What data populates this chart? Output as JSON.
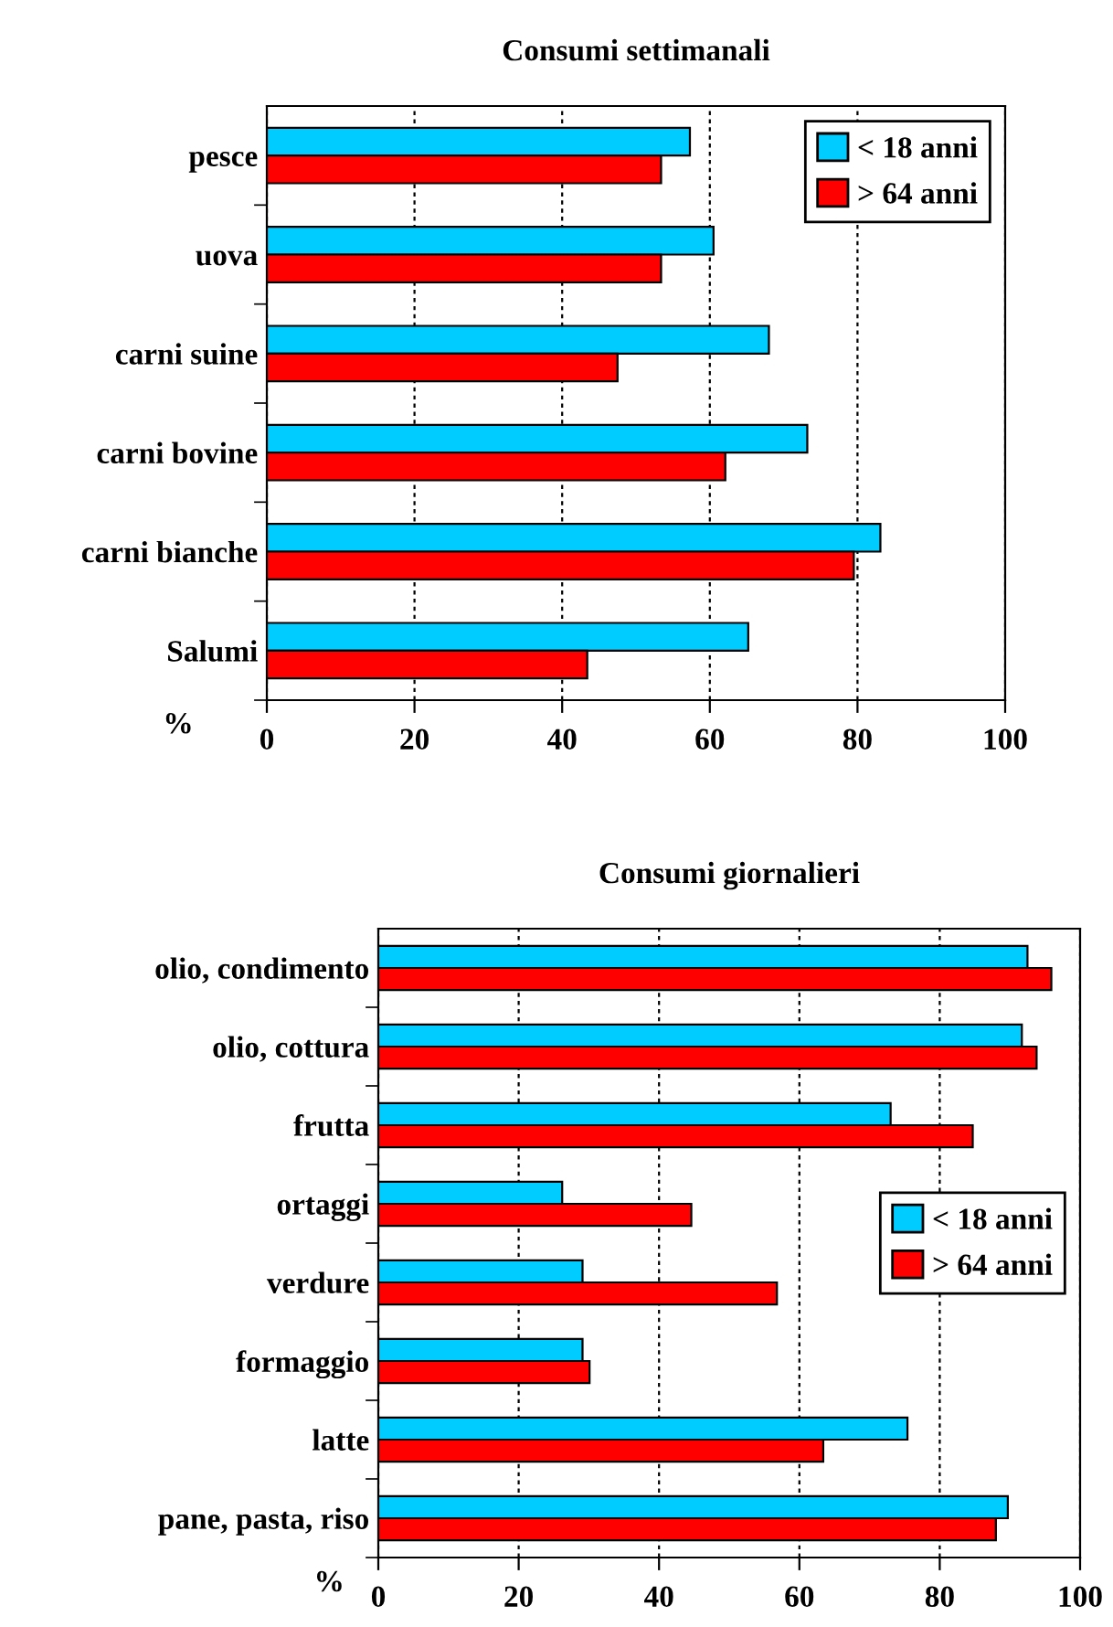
{
  "chart_data": [
    {
      "type": "bar",
      "orientation": "horizontal",
      "title": "Consumi settimanali",
      "xlabel": "%",
      "categories": [
        "pesce",
        "uova",
        "carni suine",
        "carni bovine",
        "carni bianche",
        "Salumi"
      ],
      "series": [
        {
          "name": "< 18 anni",
          "color": "#00ccff",
          "values": [
            57.3,
            60.5,
            68.0,
            73.2,
            83.1,
            65.2
          ]
        },
        {
          "name": "> 64 anni",
          "color": "#ff0000",
          "values": [
            53.4,
            53.4,
            47.5,
            62.1,
            79.5,
            43.4
          ]
        }
      ],
      "xlim": [
        0,
        100
      ],
      "xticks": [
        0,
        20,
        40,
        60,
        80,
        100
      ],
      "grid": "x",
      "legend": "top right"
    },
    {
      "type": "bar",
      "orientation": "horizontal",
      "title": "Consumi giornalieri",
      "xlabel": "%",
      "categories": [
        "olio, condimento",
        "olio, cottura",
        "frutta",
        "ortaggi",
        "verdure",
        "formaggio",
        "latte",
        "pane, pasta, riso"
      ],
      "series": [
        {
          "name": "< 18 anni",
          "color": "#00ccff",
          "values": [
            92.5,
            91.7,
            73.0,
            26.2,
            29.1,
            29.1,
            75.4,
            89.7
          ]
        },
        {
          "name": "> 64 anni",
          "color": "#ff0000",
          "values": [
            95.9,
            93.8,
            84.7,
            44.6,
            56.8,
            30.1,
            63.4,
            88.0
          ]
        }
      ],
      "xlim": [
        0,
        100
      ],
      "xticks": [
        0,
        20,
        40,
        60,
        80,
        100
      ],
      "grid": "x",
      "legend": "right"
    }
  ]
}
